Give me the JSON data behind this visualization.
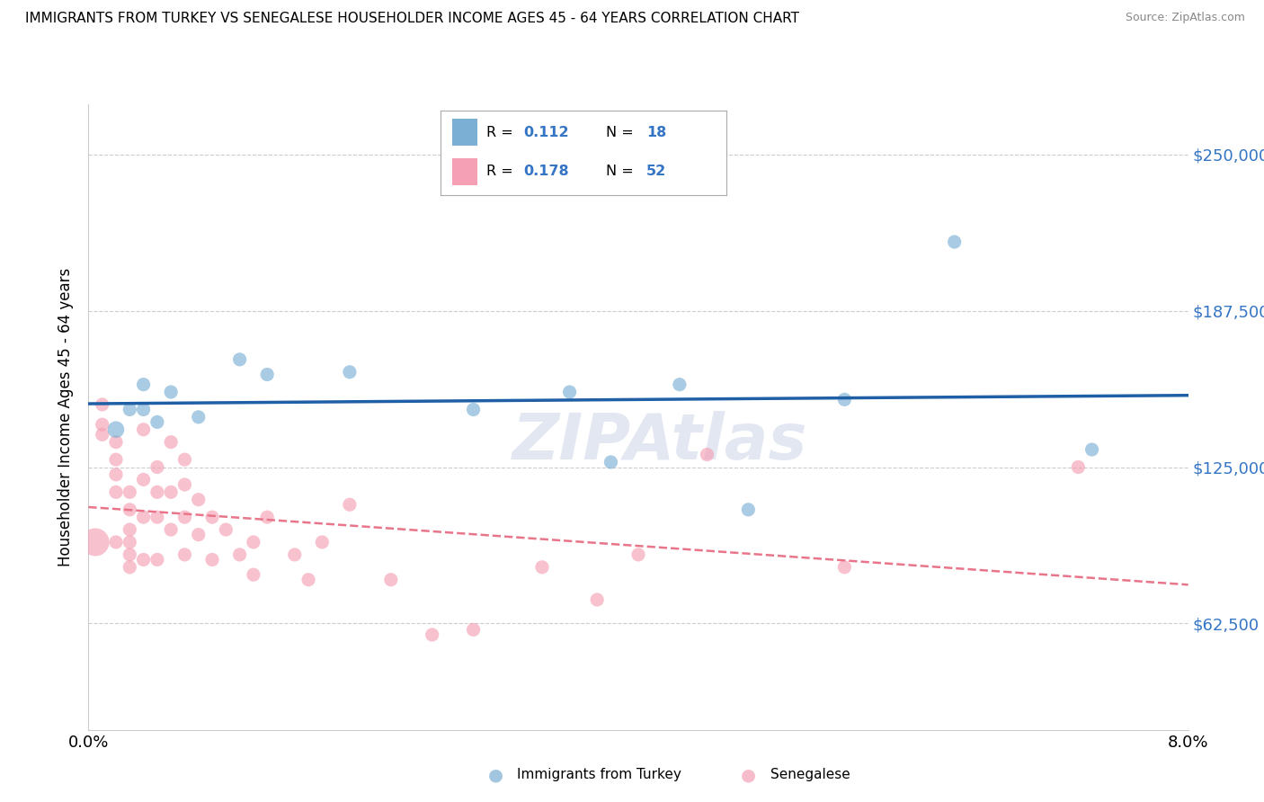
{
  "title": "IMMIGRANTS FROM TURKEY VS SENEGALESE HOUSEHOLDER INCOME AGES 45 - 64 YEARS CORRELATION CHART",
  "source": "Source: ZipAtlas.com",
  "ylabel": "Householder Income Ages 45 - 64 years",
  "ytick_labels": [
    "$62,500",
    "$125,000",
    "$187,500",
    "$250,000"
  ],
  "ytick_values": [
    62500,
    125000,
    187500,
    250000
  ],
  "ymin": 20000,
  "ymax": 270000,
  "xmin": 0.0,
  "xmax": 0.08,
  "legend_turkey_R": "0.112",
  "legend_turkey_N": "18",
  "legend_senegal_R": "0.178",
  "legend_senegal_N": "52",
  "color_turkey": "#7BAFD4",
  "color_senegal": "#F5A0B5",
  "color_turkey_line": "#1F5FA6",
  "color_senegal_line": "#E8758A",
  "watermark": "ZIPAtlas",
  "turkey_x": [
    0.002,
    0.003,
    0.004,
    0.004,
    0.005,
    0.006,
    0.008,
    0.011,
    0.013,
    0.019,
    0.028,
    0.035,
    0.038,
    0.043,
    0.048,
    0.055,
    0.063,
    0.073
  ],
  "turkey_y": [
    140000,
    148000,
    158000,
    148000,
    143000,
    155000,
    145000,
    168000,
    162000,
    163000,
    148000,
    155000,
    127000,
    158000,
    108000,
    152000,
    215000,
    132000
  ],
  "turkey_size": [
    180,
    120,
    120,
    120,
    120,
    120,
    120,
    120,
    120,
    120,
    120,
    120,
    120,
    120,
    120,
    120,
    120,
    120
  ],
  "senegal_x": [
    0.0005,
    0.001,
    0.001,
    0.001,
    0.002,
    0.002,
    0.002,
    0.002,
    0.002,
    0.003,
    0.003,
    0.003,
    0.003,
    0.003,
    0.003,
    0.004,
    0.004,
    0.004,
    0.004,
    0.005,
    0.005,
    0.005,
    0.005,
    0.006,
    0.006,
    0.006,
    0.007,
    0.007,
    0.007,
    0.007,
    0.008,
    0.008,
    0.009,
    0.009,
    0.01,
    0.011,
    0.012,
    0.012,
    0.013,
    0.015,
    0.016,
    0.017,
    0.019,
    0.022,
    0.025,
    0.028,
    0.033,
    0.037,
    0.04,
    0.045,
    0.055,
    0.072
  ],
  "senegal_y": [
    95000,
    150000,
    142000,
    138000,
    135000,
    128000,
    122000,
    115000,
    95000,
    115000,
    108000,
    100000,
    95000,
    90000,
    85000,
    140000,
    120000,
    105000,
    88000,
    125000,
    115000,
    105000,
    88000,
    135000,
    115000,
    100000,
    128000,
    118000,
    105000,
    90000,
    112000,
    98000,
    105000,
    88000,
    100000,
    90000,
    95000,
    82000,
    105000,
    90000,
    80000,
    95000,
    110000,
    80000,
    58000,
    60000,
    85000,
    72000,
    90000,
    130000,
    85000,
    125000
  ],
  "senegal_size": [
    500,
    120,
    120,
    120,
    120,
    120,
    120,
    120,
    120,
    120,
    120,
    120,
    120,
    120,
    120,
    120,
    120,
    120,
    120,
    120,
    120,
    120,
    120,
    120,
    120,
    120,
    120,
    120,
    120,
    120,
    120,
    120,
    120,
    120,
    120,
    120,
    120,
    120,
    120,
    120,
    120,
    120,
    120,
    120,
    120,
    120,
    120,
    120,
    120,
    120,
    120,
    120
  ]
}
